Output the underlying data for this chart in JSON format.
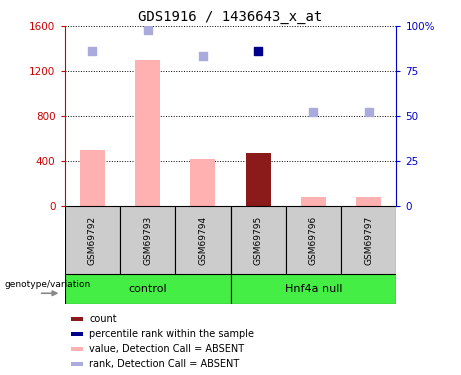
{
  "title": "GDS1916 / 1436643_x_at",
  "samples": [
    "GSM69792",
    "GSM69793",
    "GSM69794",
    "GSM69795",
    "GSM69796",
    "GSM69797"
  ],
  "bar_values": [
    500,
    1300,
    420,
    470,
    80,
    80
  ],
  "bar_colors": [
    "#ffb0b0",
    "#ffb0b0",
    "#ffb0b0",
    "#8b1a1a",
    "#ffb0b0",
    "#ffb0b0"
  ],
  "rank_dots": [
    1380,
    1570,
    1340,
    null,
    840,
    840
  ],
  "count_dot_idx": 3,
  "count_dot_val": 1380,
  "ylim_left": [
    0,
    1600
  ],
  "ylim_right": [
    0,
    100
  ],
  "yticks_left": [
    0,
    400,
    800,
    1200,
    1600
  ],
  "yticks_right": [
    0,
    25,
    50,
    75,
    100
  ],
  "left_axis_color": "#cc0000",
  "right_axis_color": "#0000cc",
  "bar_width": 0.45,
  "dot_color_rank": "#aaaadd",
  "dot_color_count": "#00008b",
  "bg_color": "white",
  "group_bg": "#44ee44",
  "sample_box_color": "#cccccc",
  "legend_items": [
    {
      "color": "#8b1a1a",
      "label": "count"
    },
    {
      "color": "#00008b",
      "label": "percentile rank within the sample"
    },
    {
      "color": "#ffb0b0",
      "label": "value, Detection Call = ABSENT"
    },
    {
      "color": "#aaaadd",
      "label": "rank, Detection Call = ABSENT"
    }
  ],
  "control_group_name": "control",
  "hnf4a_group_name": "Hnf4a null",
  "geno_label": "genotype/variation"
}
